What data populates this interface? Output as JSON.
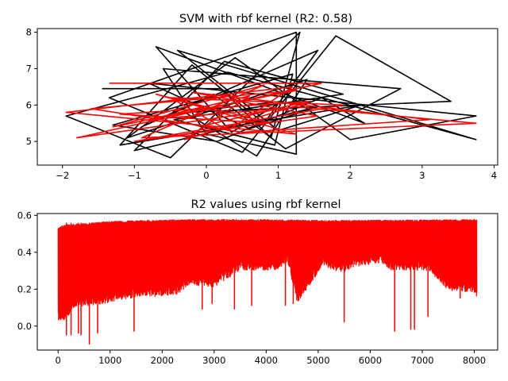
{
  "chart_data": [
    {
      "type": "line",
      "title": "SVM with rbf kernel (R2: 0.58)",
      "xlabel": "",
      "ylabel": "",
      "xlim": [
        -2.35,
        4.05
      ],
      "ylim": [
        4.35,
        8.1
      ],
      "xticks": [
        -2,
        -1,
        0,
        1,
        2,
        3,
        4
      ],
      "xtick_labels": [
        "−2",
        "−1",
        "0",
        "1",
        "2",
        "3",
        "4"
      ],
      "yticks": [
        5,
        6,
        7,
        8
      ],
      "ytick_labels": [
        "5",
        "6",
        "7",
        "8"
      ],
      "grid": false,
      "series": [
        {
          "color": "#000000",
          "x": [
            -1.45,
            0.2,
            0.9,
            1.3,
            -0.5,
            -1.95,
            0.3,
            3.75,
            -0.4,
            1.0,
            2.15,
            -1.2,
            -0.2,
            0.8,
            1.55,
            -0.9,
            0.1,
            1.1,
            2.7,
            -0.6,
            0.0,
            1.25,
            1.25,
            -1.35,
            0.5,
            1.8,
            3.4,
            -0.3,
            0.7,
            1.4,
            -1.1,
            0.4,
            2.0,
            3.75,
            -0.8,
            0.6,
            1.55,
            -1.0,
            0.25,
            1.9,
            -0.45,
            0.95,
            1.2,
            -1.3,
            0.15,
            1.6,
            2.2,
            -0.7,
            0.35,
            1.05,
            -0.1
          ],
          "y": [
            6.45,
            6.45,
            5.1,
            8.0,
            4.55,
            5.7,
            6.9,
            5.05,
            7.5,
            5.3,
            6.0,
            4.9,
            7.1,
            5.5,
            7.5,
            5.4,
            6.3,
            4.8,
            6.45,
            7.0,
            5.2,
            4.65,
            8.0,
            6.2,
            4.7,
            7.9,
            6.1,
            5.8,
            4.6,
            6.7,
            5.1,
            7.3,
            5.05,
            5.7,
            6.6,
            5.35,
            5.95,
            4.75,
            7.2,
            6.3,
            5.6,
            4.9,
            6.85,
            5.45,
            5.0,
            6.2,
            5.5,
            7.6,
            5.25,
            6.1,
            5.85
          ]
        },
        {
          "color": "#ff0000",
          "x": [
            -1.35,
            1.6,
            -1.8,
            1.25,
            3.75,
            -0.9,
            0.8,
            -1.3,
            1.25,
            -1.6,
            0.5,
            3.1,
            -0.2,
            1.55,
            -1.0,
            1.9,
            -0.5,
            0.3,
            1.2,
            -1.95,
            1.25,
            -0.7,
            0.9,
            -1.2,
            1.45,
            -0.3,
            0.6,
            -0.8,
            1.0,
            0.0,
            1.3
          ],
          "y": [
            6.6,
            6.6,
            5.1,
            5.95,
            5.5,
            5.1,
            6.55,
            5.4,
            6.4,
            5.9,
            5.25,
            5.6,
            6.35,
            5.7,
            5.0,
            6.0,
            6.2,
            5.3,
            6.5,
            5.8,
            5.2,
            6.3,
            5.5,
            5.75,
            6.1,
            5.05,
            6.25,
            5.6,
            5.9,
            5.45,
            6.05
          ]
        }
      ]
    },
    {
      "type": "line",
      "title": "R2 values using rbf kernel",
      "xlabel": "",
      "ylabel": "",
      "xlim": [
        -400,
        8450
      ],
      "ylim": [
        -0.13,
        0.61
      ],
      "xticks": [
        0,
        1000,
        2000,
        3000,
        4000,
        5000,
        6000,
        7000,
        8000
      ],
      "xtick_labels": [
        "0",
        "1000",
        "2000",
        "3000",
        "4000",
        "5000",
        "6000",
        "7000",
        "8000"
      ],
      "yticks": [
        0.0,
        0.2,
        0.4,
        0.6
      ],
      "ytick_labels": [
        "0.0",
        "0.2",
        "0.4",
        "0.6"
      ],
      "grid": false,
      "series": [
        {
          "color": "#ff0000",
          "n_points": 8050,
          "x_range": [
            0,
            8050
          ],
          "upper_band": [
            [
              0,
              0.53
            ],
            [
              80,
              0.55
            ],
            [
              600,
              0.56
            ],
            [
              1000,
              0.57
            ],
            [
              2400,
              0.58
            ],
            [
              3700,
              0.58
            ],
            [
              5200,
              0.575
            ],
            [
              8050,
              0.58
            ]
          ],
          "lower_band": [
            [
              0,
              0.03
            ],
            [
              150,
              0.03
            ],
            [
              300,
              0.1
            ],
            [
              900,
              0.12
            ],
            [
              1200,
              0.14
            ],
            [
              1500,
              0.15
            ],
            [
              2300,
              0.17
            ],
            [
              2500,
              0.22
            ],
            [
              3000,
              0.21
            ],
            [
              3500,
              0.3
            ],
            [
              4200,
              0.3
            ],
            [
              4400,
              0.35
            ],
            [
              4600,
              0.12
            ],
            [
              5100,
              0.33
            ],
            [
              5400,
              0.28
            ],
            [
              5700,
              0.32
            ],
            [
              6200,
              0.34
            ],
            [
              6400,
              0.3
            ],
            [
              7100,
              0.3
            ],
            [
              7500,
              0.19
            ],
            [
              8000,
              0.18
            ],
            [
              8050,
              0.15
            ]
          ],
          "dips": [
            [
              160,
              -0.05
            ],
            [
              250,
              -0.05
            ],
            [
              390,
              -0.04
            ],
            [
              440,
              -0.05
            ],
            [
              600,
              -0.1
            ],
            [
              760,
              -0.04
            ],
            [
              1460,
              -0.03
            ],
            [
              2770,
              0.09
            ],
            [
              2960,
              0.12
            ],
            [
              3390,
              0.09
            ],
            [
              3720,
              0.11
            ],
            [
              4370,
              0.11
            ],
            [
              4520,
              0.12
            ],
            [
              5500,
              0.02
            ],
            [
              6470,
              -0.03
            ],
            [
              6780,
              -0.02
            ],
            [
              6850,
              -0.02
            ],
            [
              7110,
              0.05
            ],
            [
              7730,
              0.15
            ]
          ]
        }
      ]
    }
  ]
}
